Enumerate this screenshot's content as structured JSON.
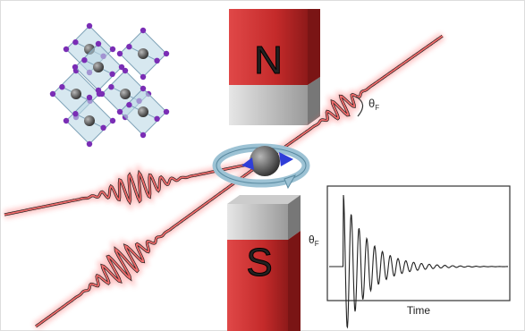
{
  "magnet_top": {
    "label": "N"
  },
  "magnet_bottom": {
    "label": "S"
  },
  "rotation_label": {
    "symbol": "θ",
    "subscript": "F"
  },
  "inset_plot": {
    "y_label": {
      "symbol": "θ",
      "subscript": "F"
    },
    "x_label": "Time"
  }
}
